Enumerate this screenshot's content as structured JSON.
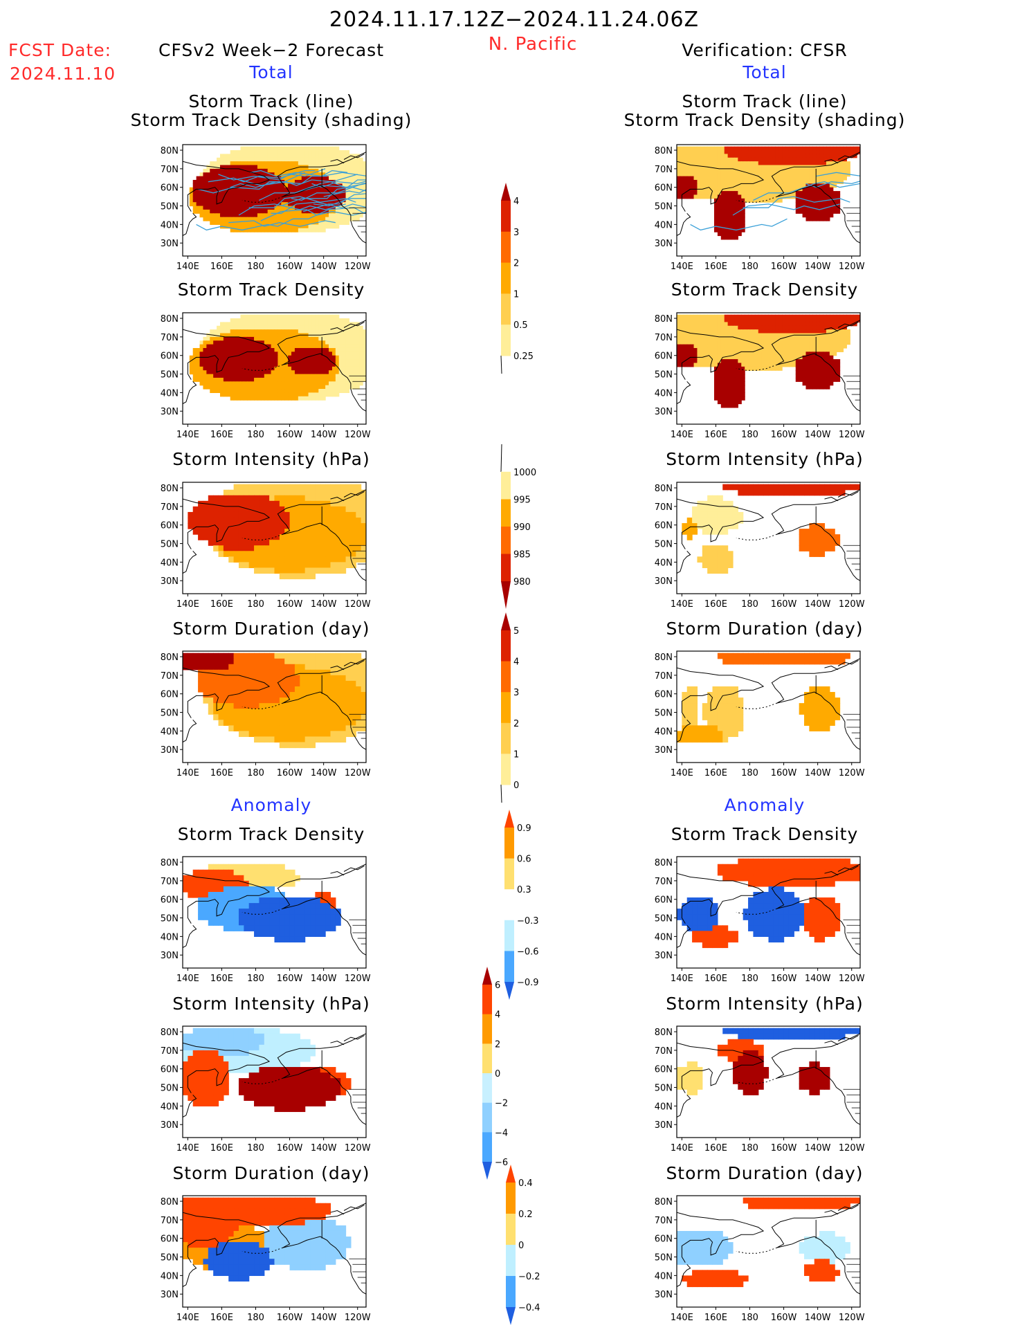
{
  "header": {
    "date_range": "2024.11.17.12Z−2024.11.24.06Z",
    "region": "N. Pacific",
    "fcst_label": "FCST Date:",
    "fcst_date": "2024.11.10",
    "left_title": "CFSv2 Week−2 Forecast",
    "right_title": "Verification: CFSR",
    "total_label": "Total",
    "anomaly_label": "Anomaly"
  },
  "panel_titles": {
    "track_line": "Storm Track (line)",
    "track_shading": "Storm Track Density (shading)",
    "density": "Storm Track Density",
    "intensity": "Storm Intensity (hPa)",
    "duration": "Storm Duration (day)"
  },
  "map_axes": {
    "lat_labels": [
      "80N",
      "70N",
      "60N",
      "50N",
      "40N",
      "30N"
    ],
    "lon_labels": [
      "140E",
      "160E",
      "180",
      "160W",
      "140W",
      "120W"
    ]
  },
  "colorbars": {
    "density_total": {
      "labels": [
        "4",
        "3",
        "2",
        "1",
        "0.5",
        "0.25"
      ],
      "colors": [
        "#a80000",
        "#dd2200",
        "#ff6a00",
        "#ffaa00",
        "#ffcf50",
        "#ffee99",
        "#fffbd0"
      ]
    },
    "intensity_total": {
      "labels": [
        "1000",
        "995",
        "990",
        "985",
        "980"
      ],
      "colors": [
        "#fffbd0",
        "#ffee99",
        "#ffaa00",
        "#ff6a00",
        "#dd2200",
        "#a80000"
      ]
    },
    "duration_total": {
      "labels": [
        "5",
        "4",
        "3",
        "2",
        "1",
        "0"
      ],
      "colors": [
        "#a80000",
        "#dd2200",
        "#ff6a00",
        "#ffaa00",
        "#ffcf50",
        "#ffee99",
        "#fffbd0"
      ]
    },
    "density_anom": {
      "labels": [
        "0.9",
        "0.6",
        "0.3",
        "−0.3",
        "−0.6",
        "−0.9"
      ],
      "colors": [
        "#ff4400",
        "#ff9a00",
        "#ffe070",
        "#ffffff",
        "#bfefff",
        "#4aa8ff",
        "#1f5fe0"
      ]
    },
    "intensity_anom": {
      "labels": [
        "6",
        "4",
        "2",
        "0",
        "−2",
        "−4",
        "−6"
      ],
      "colors": [
        "#a80000",
        "#ff4400",
        "#ff9a00",
        "#ffe070",
        "#c8f0ff",
        "#8fd0ff",
        "#4aa8ff",
        "#1f5fe0"
      ]
    },
    "duration_anom": {
      "labels": [
        "0.4",
        "0.2",
        "0",
        "−0.2",
        "−0.4"
      ],
      "colors": [
        "#ff4400",
        "#ff9a00",
        "#ffe070",
        "#bfefff",
        "#4aa8ff",
        "#1f5fe0"
      ]
    }
  }
}
